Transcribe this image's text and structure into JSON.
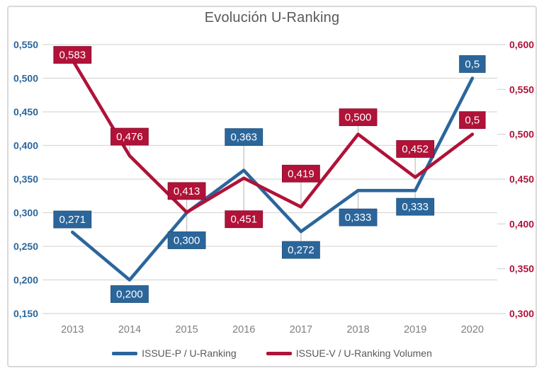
{
  "chart_data": {
    "type": "line",
    "title": "Evolución U-Ranking",
    "categories": [
      "2013",
      "2014",
      "2015",
      "2016",
      "2017",
      "2018",
      "2019",
      "2020"
    ],
    "series": [
      {
        "name": "ISSUE-P / U-Ranking",
        "axis": "left",
        "color": "#2B669B",
        "box_stroke": "#1F4E79",
        "values": [
          0.271,
          0.2,
          0.3,
          0.363,
          0.272,
          0.333,
          0.333,
          0.5
        ],
        "labels": [
          "0,271",
          "0,200",
          "0,300",
          "0,363",
          "0,272",
          "0,333",
          "0,333",
          "0,5"
        ],
        "label_dy": [
          -18,
          20,
          39,
          -47,
          26,
          38,
          23,
          -20
        ],
        "leader": [
          false,
          false,
          true,
          true,
          true,
          true,
          true,
          false
        ]
      },
      {
        "name": "ISSUE-V / U-Ranking Volumen",
        "axis": "right",
        "color": "#B01238",
        "box_stroke": "#8C0B2D",
        "values": [
          0.583,
          0.476,
          0.413,
          0.451,
          0.419,
          0.5,
          0.452,
          0.5
        ],
        "labels": [
          "0,583",
          "0,476",
          "0,413",
          "0,451",
          "0,419",
          "0,500",
          "0,452",
          "0,5"
        ],
        "label_dy": [
          -7,
          -27,
          -30,
          58,
          -47,
          -24,
          -40,
          -20
        ],
        "leader": [
          false,
          true,
          true,
          true,
          true,
          true,
          true,
          false
        ]
      }
    ],
    "axes": {
      "left": {
        "min": 0.15,
        "max": 0.55,
        "step": 0.05,
        "ticks": [
          "0,550",
          "0,500",
          "0,450",
          "0,400",
          "0,350",
          "0,300",
          "0,250",
          "0,200",
          "0,150"
        ],
        "color": "#2B669B"
      },
      "right": {
        "min": 0.3,
        "max": 0.6,
        "step": 0.05,
        "ticks": [
          "0,600",
          "0,550",
          "0,500",
          "0,450",
          "0,400",
          "0,350",
          "0,300"
        ],
        "color": "#B01238"
      }
    },
    "grid": true,
    "legend_position": "bottom",
    "colors": {
      "gridline": "#D9D9D9",
      "frame_border": "#D9D9D9",
      "title_text": "#595959",
      "x_axis_text": "#7F7F7F",
      "leader_line": "#BFBFBF",
      "label_text": "#FFFFFF",
      "legend_text": "#595959"
    }
  }
}
